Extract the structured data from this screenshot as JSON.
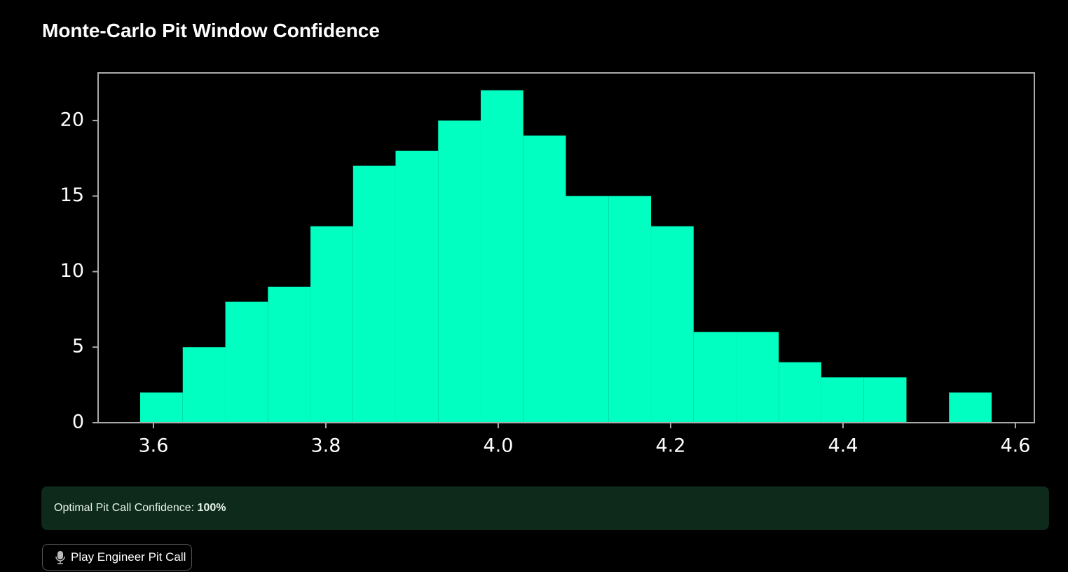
{
  "header": {
    "title": "Monte-Carlo Pit Window Confidence"
  },
  "chart_data": {
    "type": "histogram",
    "bins": [
      3.5846,
      3.634,
      3.6834,
      3.7328,
      3.7822,
      3.8316,
      3.8809,
      3.9303,
      3.9797,
      4.0291,
      4.0785,
      4.1279,
      4.1773,
      4.2267,
      4.2761,
      4.3255,
      4.3748,
      4.4242,
      4.4736,
      4.523,
      4.5724
    ],
    "counts": [
      2,
      5,
      8,
      9,
      13,
      17,
      18,
      20,
      22,
      19,
      15,
      15,
      13,
      6,
      6,
      4,
      3,
      3,
      0,
      2
    ],
    "color": "#00ffc0",
    "xlim": [
      3.5358,
      4.622
    ],
    "xticks": [
      3.6,
      3.8,
      {
        "value": 4,
        "label": "4.0"
      },
      4.2,
      4.4,
      4.6
    ],
    "ylim": [
      0,
      23.15
    ],
    "yticks": [
      0,
      5,
      10,
      15,
      20
    ],
    "grid": false
  },
  "alert": {
    "label": "Optimal Pit Call Confidence:",
    "value": "100%"
  },
  "button": {
    "label": "Play Engineer Pit Call"
  }
}
